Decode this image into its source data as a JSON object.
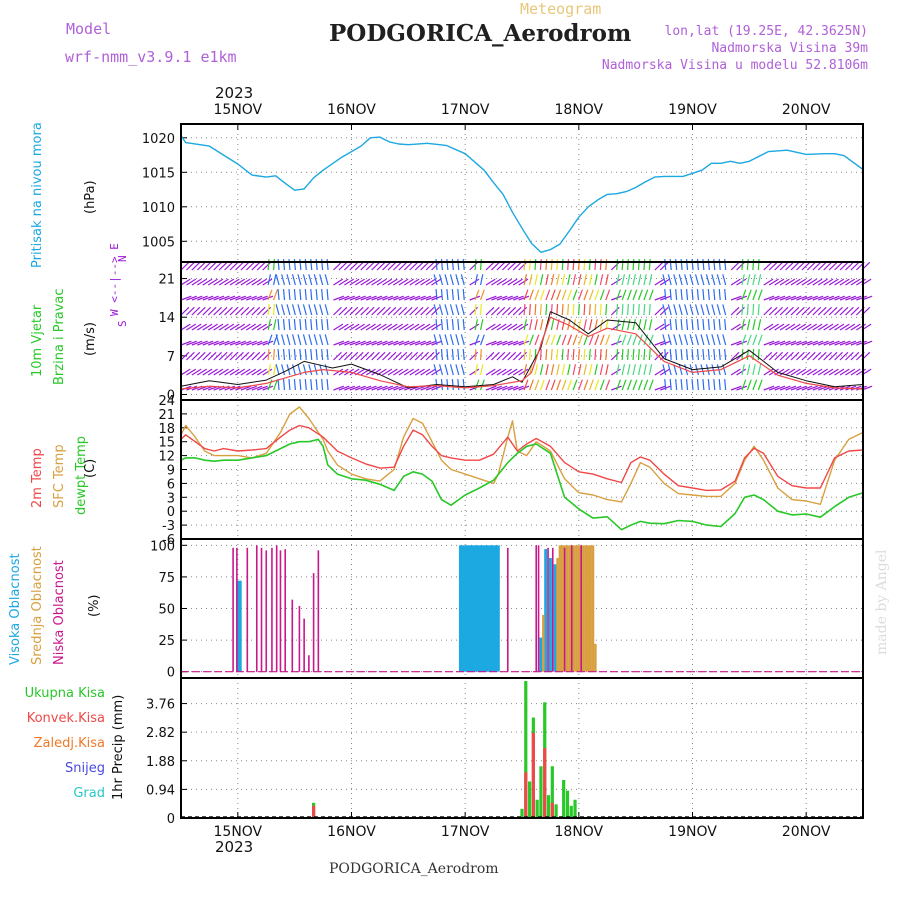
{
  "header": {
    "model_label": "Model",
    "model_name": "wrf-nmm_v3.9.1 e1km",
    "title": "PODGORICA_Aerodrom",
    "meteogram": "Meteogram",
    "lonlat": "lon,lat (19.25E, 42.3625N)",
    "elev": "Nadmorska Visina 39m",
    "elev_model": "Nadmorska Visina u modelu 52.8106m",
    "year": "2023",
    "footer": "PODGORICA_Aerodrom",
    "credit": "made by Angel"
  },
  "axis_labels": {
    "pressure": [
      "Pritisak na nivou mora",
      "(hPa)"
    ],
    "wind": [
      "10m Vjetar",
      "Brzina i Pravac",
      "(m/s)"
    ],
    "compass": [
      "N",
      "W <--|--> E",
      "S"
    ],
    "temp": [
      "2m Temp",
      "SFC Temp",
      "dewpt Temp",
      "(C)"
    ],
    "cloud": [
      "Visoka Oblacnost",
      "Srednja Oblacnost",
      "Niska Oblacnost",
      "(%)"
    ],
    "precip": [
      "Ukupna Kisa",
      "Konvek.Kisa",
      "Zaledj.Kisa",
      "Snijeg",
      "Grad",
      "1hr Precip (mm)"
    ]
  },
  "colors": {
    "pressure": "#1ca8e0",
    "wind_purple": "#9a18d8",
    "wind_blue": "#2c6cf0",
    "temp2m": "#f04848",
    "sfc": "#d8a040",
    "dew": "#28c828",
    "high_cloud": "#1ca8e0",
    "mid_cloud": "#d8a040",
    "low_cloud": "#c8188c",
    "total_rain": "#28c828",
    "conv_rain": "#f04848",
    "frz_rain": "#f07828",
    "snow": "#4848e0",
    "hail": "#28c8c8",
    "model_label": "#b060d8"
  },
  "chart_data": {
    "days": [
      "15NOV",
      "16NOV",
      "17NOV",
      "18NOV",
      "19NOV",
      "20NOV"
    ],
    "x_range_hours": [
      -12,
      132
    ],
    "panels": [
      {
        "name": "pressure",
        "type": "line",
        "unit": "hPa",
        "ylim": [
          1002,
          1022
        ],
        "yticks": [
          1005,
          1010,
          1015,
          1020
        ],
        "series": [
          {
            "name": "Pritisak na nivou mora",
            "x": [
              -12,
              -11,
              -6,
              -3,
              0,
              3,
              6,
              8,
              10,
              12,
              14,
              16,
              18,
              22,
              26,
              28,
              30,
              32,
              34,
              36,
              40,
              44,
              48,
              52,
              54,
              56,
              58,
              60,
              62,
              64,
              66,
              68,
              70,
              72,
              74,
              76,
              78,
              80,
              82,
              84,
              86,
              88,
              90,
              94,
              98,
              100,
              102,
              104,
              106,
              108,
              112,
              116,
              120,
              124,
              126,
              128,
              130,
              132
            ],
            "y": [
              1020.3,
              1019.3,
              1018.8,
              1017.5,
              1016.2,
              1014.6,
              1014.3,
              1014.5,
              1013.4,
              1012.4,
              1012.6,
              1014.2,
              1015.3,
              1017.2,
              1018.8,
              1020.0,
              1020.1,
              1019.4,
              1019.1,
              1019.0,
              1019.2,
              1018.9,
              1017.7,
              1015.3,
              1013.5,
              1011.8,
              1009.2,
              1006.9,
              1004.7,
              1003.4,
              1003.8,
              1004.6,
              1006.5,
              1008.5,
              1010.0,
              1011.0,
              1011.8,
              1011.9,
              1012.2,
              1012.8,
              1013.6,
              1014.3,
              1014.4,
              1014.4,
              1015.3,
              1016.3,
              1016.3,
              1016.6,
              1016.3,
              1016.6,
              1018.0,
              1018.2,
              1017.6,
              1017.7,
              1017.7,
              1017.4,
              1016.4,
              1015.4
            ]
          }
        ]
      },
      {
        "name": "wind",
        "type": "barb",
        "unit": "m/s",
        "ylim": [
          -1,
          24
        ],
        "yticks": [
          0,
          7,
          14,
          21
        ],
        "series": [
          {
            "name": "10m wind speed",
            "x": [
              -12,
              -6,
              0,
              6,
              10,
              14,
              18,
              20,
              24,
              30,
              36,
              42,
              48,
              54,
              58,
              60,
              64,
              66,
              70,
              74,
              78,
              84,
              90,
              96,
              102,
              108,
              114,
              120,
              126,
              132
            ],
            "y": [
              1.5,
              2.5,
              1.8,
              2.6,
              4.2,
              6.0,
              5.2,
              4.8,
              5.5,
              3.6,
              1.2,
              1.8,
              1.4,
              1.8,
              3.2,
              2.2,
              8.5,
              15.0,
              13.5,
              11.0,
              13.5,
              13.0,
              6.5,
              4.5,
              5.0,
              8.0,
              4.0,
              2.5,
              1.4,
              1.8
            ]
          },
          {
            "name": "gust",
            "x": [
              -12,
              -6,
              0,
              6,
              10,
              14,
              18,
              24,
              30,
              36,
              42,
              48,
              54,
              60,
              62,
              64,
              66,
              70,
              74,
              78,
              84,
              90,
              96,
              102,
              108,
              114,
              120,
              126,
              132
            ],
            "y": [
              1.0,
              1.5,
              1.2,
              2.0,
              3.0,
              4.0,
              4.5,
              4.0,
              2.5,
              1.4,
              1.6,
              1.2,
              1.6,
              2.5,
              4.0,
              9.0,
              14.0,
              12.5,
              10.5,
              12.0,
              11.0,
              6.0,
              4.0,
              4.5,
              7.0,
              3.5,
              2.0,
              1.2,
              1.0
            ]
          }
        ]
      },
      {
        "name": "temperature",
        "type": "line",
        "unit": "C",
        "ylim": [
          -6,
          24
        ],
        "yticks": [
          -6,
          -3,
          0,
          3,
          6,
          9,
          12,
          15,
          18,
          21,
          24
        ],
        "series": [
          {
            "name": "2m Temp",
            "x": [
              -12,
              -11,
              -9,
              -7,
              -5,
              -3,
              0,
              3,
              6,
              9,
              11,
              13,
              15,
              18,
              19,
              21,
              24,
              27,
              30,
              33,
              35,
              37,
              39,
              41,
              43,
              45,
              48,
              51,
              54,
              57,
              59,
              61,
              63,
              66,
              69,
              72,
              75,
              78,
              81,
              83,
              85,
              87,
              90,
              93,
              96,
              99,
              102,
              105,
              107,
              109,
              111,
              114,
              117,
              120,
              123,
              126,
              129,
              132
            ],
            "y": [
              15.5,
              16.5,
              15,
              13.5,
              13,
              13.5,
              13,
              13.2,
              13.5,
              16,
              17.5,
              18.5,
              18,
              16,
              15,
              13,
              11.5,
              10.2,
              9.3,
              9.5,
              14,
              17.5,
              16.5,
              14,
              12,
              11.5,
              11,
              11,
              12.3,
              16,
              13,
              14.5,
              15.7,
              14,
              10.5,
              8.5,
              8,
              7,
              6.2,
              10.5,
              11.7,
              11,
              8,
              5.5,
              5,
              4.5,
              4.6,
              6.5,
              11.5,
              13.6,
              12.5,
              7.5,
              5.5,
              5,
              5,
              11.5,
              13,
              13.2
            ]
          },
          {
            "name": "SFC Temp",
            "x": [
              -12,
              -11,
              -9,
              -7,
              -5,
              -3,
              0,
              3,
              6,
              9,
              11,
              13,
              15,
              18,
              19,
              21,
              24,
              27,
              30,
              33,
              35,
              37,
              39,
              41,
              43,
              45,
              48,
              51,
              54,
              55,
              56,
              57,
              58,
              59,
              61,
              63,
              66,
              69,
              72,
              75,
              78,
              81,
              83,
              85,
              87,
              90,
              93,
              96,
              99,
              102,
              105,
              107,
              109,
              111,
              114,
              117,
              120,
              123,
              126,
              129,
              132
            ],
            "y": [
              16.5,
              18.5,
              16,
              13,
              12,
              12,
              12,
              11.5,
              12.5,
              17,
              21,
              22.5,
              20,
              15.5,
              13,
              10,
              8,
              7,
              6.5,
              9,
              16,
              20,
              19,
              15,
              11,
              9,
              8,
              7,
              6,
              8,
              12,
              16,
              19.5,
              13,
              12,
              15,
              13,
              7,
              4,
              3.5,
              2.5,
              2,
              6,
              10.5,
              9.5,
              6,
              3.8,
              3.5,
              3.2,
              3.2,
              6,
              11,
              14,
              11,
              5,
              2.5,
              2.2,
              1.5,
              11,
              15.5,
              17
            ]
          },
          {
            "name": "dewpt Temp",
            "x": [
              -12,
              -11,
              -9,
              -7,
              -5,
              -3,
              0,
              3,
              6,
              9,
              11,
              13,
              15,
              17,
              18,
              19,
              21,
              24,
              27,
              30,
              33,
              35,
              37,
              39,
              41,
              43,
              45,
              48,
              51,
              54,
              57,
              59,
              61,
              63,
              66,
              69,
              72,
              75,
              78,
              81,
              83,
              85,
              87,
              90,
              93,
              96,
              99,
              102,
              105,
              107,
              109,
              111,
              114,
              117,
              120,
              123,
              126,
              129,
              132
            ],
            "y": [
              11,
              11.5,
              11.5,
              11,
              10.8,
              11,
              11,
              11.5,
              12,
              13.5,
              14.5,
              15,
              15,
              15.5,
              14,
              10,
              8,
              7,
              6.7,
              5.8,
              4.5,
              7.5,
              8.5,
              8,
              6.5,
              2.5,
              1.3,
              3.5,
              5,
              6.7,
              10.5,
              12.5,
              14,
              14.5,
              12.5,
              3,
              0.5,
              -1.5,
              -1.2,
              -4,
              -3,
              -2.2,
              -2.6,
              -2.7,
              -2,
              -2.2,
              -3,
              -3.3,
              -0.5,
              3,
              3.5,
              2.5,
              0,
              -0.8,
              -0.6,
              -1.3,
              1,
              3,
              4
            ]
          }
        ]
      },
      {
        "name": "cloud",
        "type": "bar",
        "unit": "%",
        "ylim": [
          -5,
          105
        ],
        "yticks": [
          0,
          25,
          50,
          75,
          100
        ],
        "series": [
          {
            "name": "Visoka Oblacnost",
            "x": [
              0,
              0.5,
              47,
              47.5,
              48,
              48.5,
              49,
              49.5,
              50,
              50.5,
              51,
              51.5,
              52,
              52.5,
              53,
              53.5,
              54,
              54.5,
              55,
              64,
              65,
              66,
              67
            ],
            "y": [
              72,
              72,
              100,
              100,
              100,
              100,
              100,
              100,
              100,
              100,
              100,
              100,
              100,
              100,
              100,
              100,
              100,
              100,
              100,
              27,
              97,
              90,
              85
            ]
          },
          {
            "name": "Srednja Oblacnost",
            "x": [
              64.5,
              67.5,
              68,
              68.5,
              69,
              69.5,
              70,
              70.5,
              71,
              71.5,
              72,
              72.5,
              73,
              73.5,
              74,
              74.5,
              75,
              75.5
            ],
            "y": [
              45,
              90,
              100,
              100,
              100,
              100,
              100,
              100,
              100,
              100,
              100,
              100,
              100,
              100,
              100,
              100,
              100,
              22
            ]
          },
          {
            "name": "Niska Oblacnost",
            "x": [
              -1,
              -0.2,
              2,
              4,
              5,
              6,
              7.2,
              8.2,
              9,
              10,
              11.5,
              13,
              14,
              15,
              16,
              17,
              57,
              63,
              63.5,
              65.5,
              66.5,
              69,
              70.5,
              72.5
            ],
            "y": [
              98,
              98,
              98,
              100,
              98,
              96,
              98,
              100,
              96,
              97,
              57,
              52,
              42,
              13,
              78,
              96,
              98,
              100,
              100,
              98,
              98,
              98,
              100,
              100
            ]
          }
        ]
      },
      {
        "name": "precip",
        "type": "bar",
        "unit": "mm",
        "ylim": [
          0,
          4.6
        ],
        "yticks": [
          0,
          0.94,
          1.88,
          2.82,
          3.76
        ],
        "series": [
          {
            "name": "Ukupna Kisa",
            "x": [
              16,
              60,
              60.8,
              61.6,
              62.4,
              63.2,
              64,
              64.8,
              65.6,
              66.4,
              67.2,
              68.8,
              69.6,
              70.4,
              71.2
            ],
            "y": [
              0.5,
              0.3,
              4.5,
              1.2,
              3.3,
              0.6,
              1.7,
              3.8,
              0.75,
              1.7,
              0.45,
              1.25,
              0.9,
              0.4,
              0.6
            ]
          },
          {
            "name": "Konvek.Kisa",
            "x": [
              16,
              60.8,
              62.4,
              64.8,
              66.4
            ],
            "y": [
              0.4,
              1.5,
              2.8,
              2.3,
              0.5
            ]
          }
        ]
      }
    ]
  }
}
